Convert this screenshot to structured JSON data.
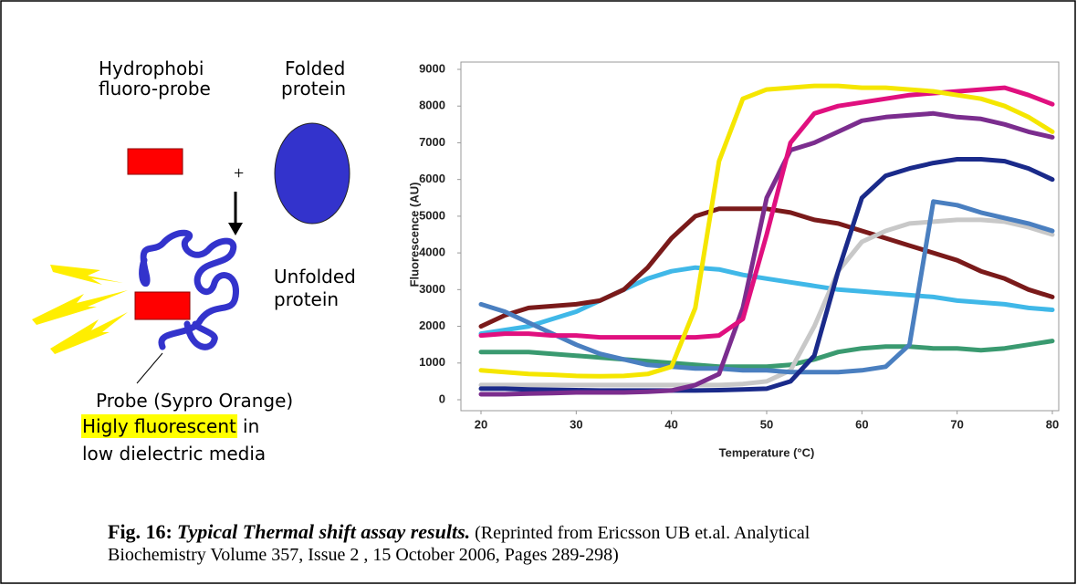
{
  "diagram": {
    "probe_label": [
      "Hydrophobi",
      "fluoro-probe"
    ],
    "protein_label": [
      "Folded",
      "protein"
    ],
    "plus": "+",
    "unfolded_label": [
      "Unfolded",
      "protein"
    ],
    "probe_name": "Probe (Sypro Orange)",
    "highlight": "Higly fluorescent",
    "highlight_rest": "in",
    "media": "low dielectric media"
  },
  "chart_data": {
    "type": "line",
    "ylabel": "Fluorescence (AU)",
    "xlabel": "Temperature (°C)",
    "xlim": [
      20,
      80
    ],
    "xticks": [
      20,
      30,
      40,
      50,
      60,
      70,
      80
    ],
    "ylim": [
      0,
      9000
    ],
    "yticks": [
      0,
      1000,
      2000,
      3000,
      4000,
      5000,
      6000,
      7000,
      8000,
      9000
    ],
    "x": [
      20,
      22.5,
      25,
      27.5,
      30,
      32.5,
      35,
      37.5,
      40,
      42.5,
      45,
      47.5,
      50,
      52.5,
      55,
      57.5,
      60,
      62.5,
      65,
      67.5,
      70,
      72.5,
      75,
      77.5,
      80
    ],
    "series": [
      {
        "color": "#3a9a70",
        "values": [
          1300,
          1300,
          1300,
          1250,
          1200,
          1150,
          1100,
          1050,
          1000,
          950,
          900,
          900,
          900,
          950,
          1100,
          1300,
          1400,
          1450,
          1450,
          1400,
          1400,
          1350,
          1400,
          1500,
          1600
        ]
      },
      {
        "color": "#40b8e8",
        "values": [
          1800,
          1900,
          2000,
          2200,
          2400,
          2700,
          3000,
          3300,
          3500,
          3600,
          3550,
          3400,
          3300,
          3200,
          3100,
          3000,
          2950,
          2900,
          2850,
          2800,
          2700,
          2650,
          2600,
          2500,
          2450
        ]
      },
      {
        "color": "#7a1a1a",
        "values": [
          2000,
          2300,
          2500,
          2550,
          2600,
          2700,
          3000,
          3600,
          4400,
          5000,
          5200,
          5200,
          5200,
          5100,
          4900,
          4800,
          4600,
          4400,
          4200,
          4000,
          3800,
          3500,
          3300,
          3000,
          2800
        ]
      },
      {
        "color": "#c8c8c8",
        "values": [
          400,
          400,
          400,
          400,
          400,
          400,
          400,
          400,
          400,
          400,
          400,
          430,
          500,
          800,
          2000,
          3500,
          4300,
          4600,
          4800,
          4850,
          4900,
          4900,
          4850,
          4700,
          4500
        ]
      },
      {
        "color": "#4a7fc0",
        "values": [
          2600,
          2400,
          2100,
          1800,
          1500,
          1250,
          1100,
          950,
          900,
          850,
          850,
          800,
          800,
          750,
          750,
          750,
          800,
          900,
          1500,
          5400,
          5300,
          5100,
          4950,
          4800,
          4600
        ]
      },
      {
        "color": "#1a2a8a",
        "values": [
          300,
          300,
          280,
          270,
          260,
          250,
          250,
          250,
          250,
          250,
          260,
          280,
          300,
          500,
          1200,
          3500,
          5500,
          6100,
          6300,
          6450,
          6550,
          6550,
          6500,
          6300,
          6000
        ]
      },
      {
        "color": "#7b2d8e",
        "values": [
          150,
          150,
          170,
          180,
          200,
          200,
          200,
          220,
          250,
          400,
          700,
          2500,
          5500,
          6800,
          7000,
          7300,
          7600,
          7700,
          7750,
          7800,
          7700,
          7650,
          7500,
          7300,
          7150
        ]
      },
      {
        "color": "#e0107f",
        "values": [
          1750,
          1800,
          1800,
          1750,
          1750,
          1700,
          1700,
          1700,
          1700,
          1700,
          1750,
          2200,
          4500,
          7000,
          7800,
          8000,
          8100,
          8200,
          8300,
          8350,
          8400,
          8450,
          8500,
          8300,
          8050
        ]
      },
      {
        "color": "#f5e600",
        "values": [
          800,
          750,
          700,
          680,
          650,
          640,
          650,
          700,
          900,
          2500,
          6500,
          8200,
          8450,
          8500,
          8550,
          8550,
          8500,
          8500,
          8450,
          8400,
          8300,
          8200,
          8000,
          7700,
          7300
        ]
      }
    ]
  },
  "caption": {
    "label": "Fig. 16:",
    "title": "Typical Thermal shift assay results.",
    "source": [
      "(Reprinted from Ericsson UB et.al. Analytical",
      "Biochemistry Volume 357, Issue 2 , 15 October 2006, Pages 289-298)"
    ]
  }
}
